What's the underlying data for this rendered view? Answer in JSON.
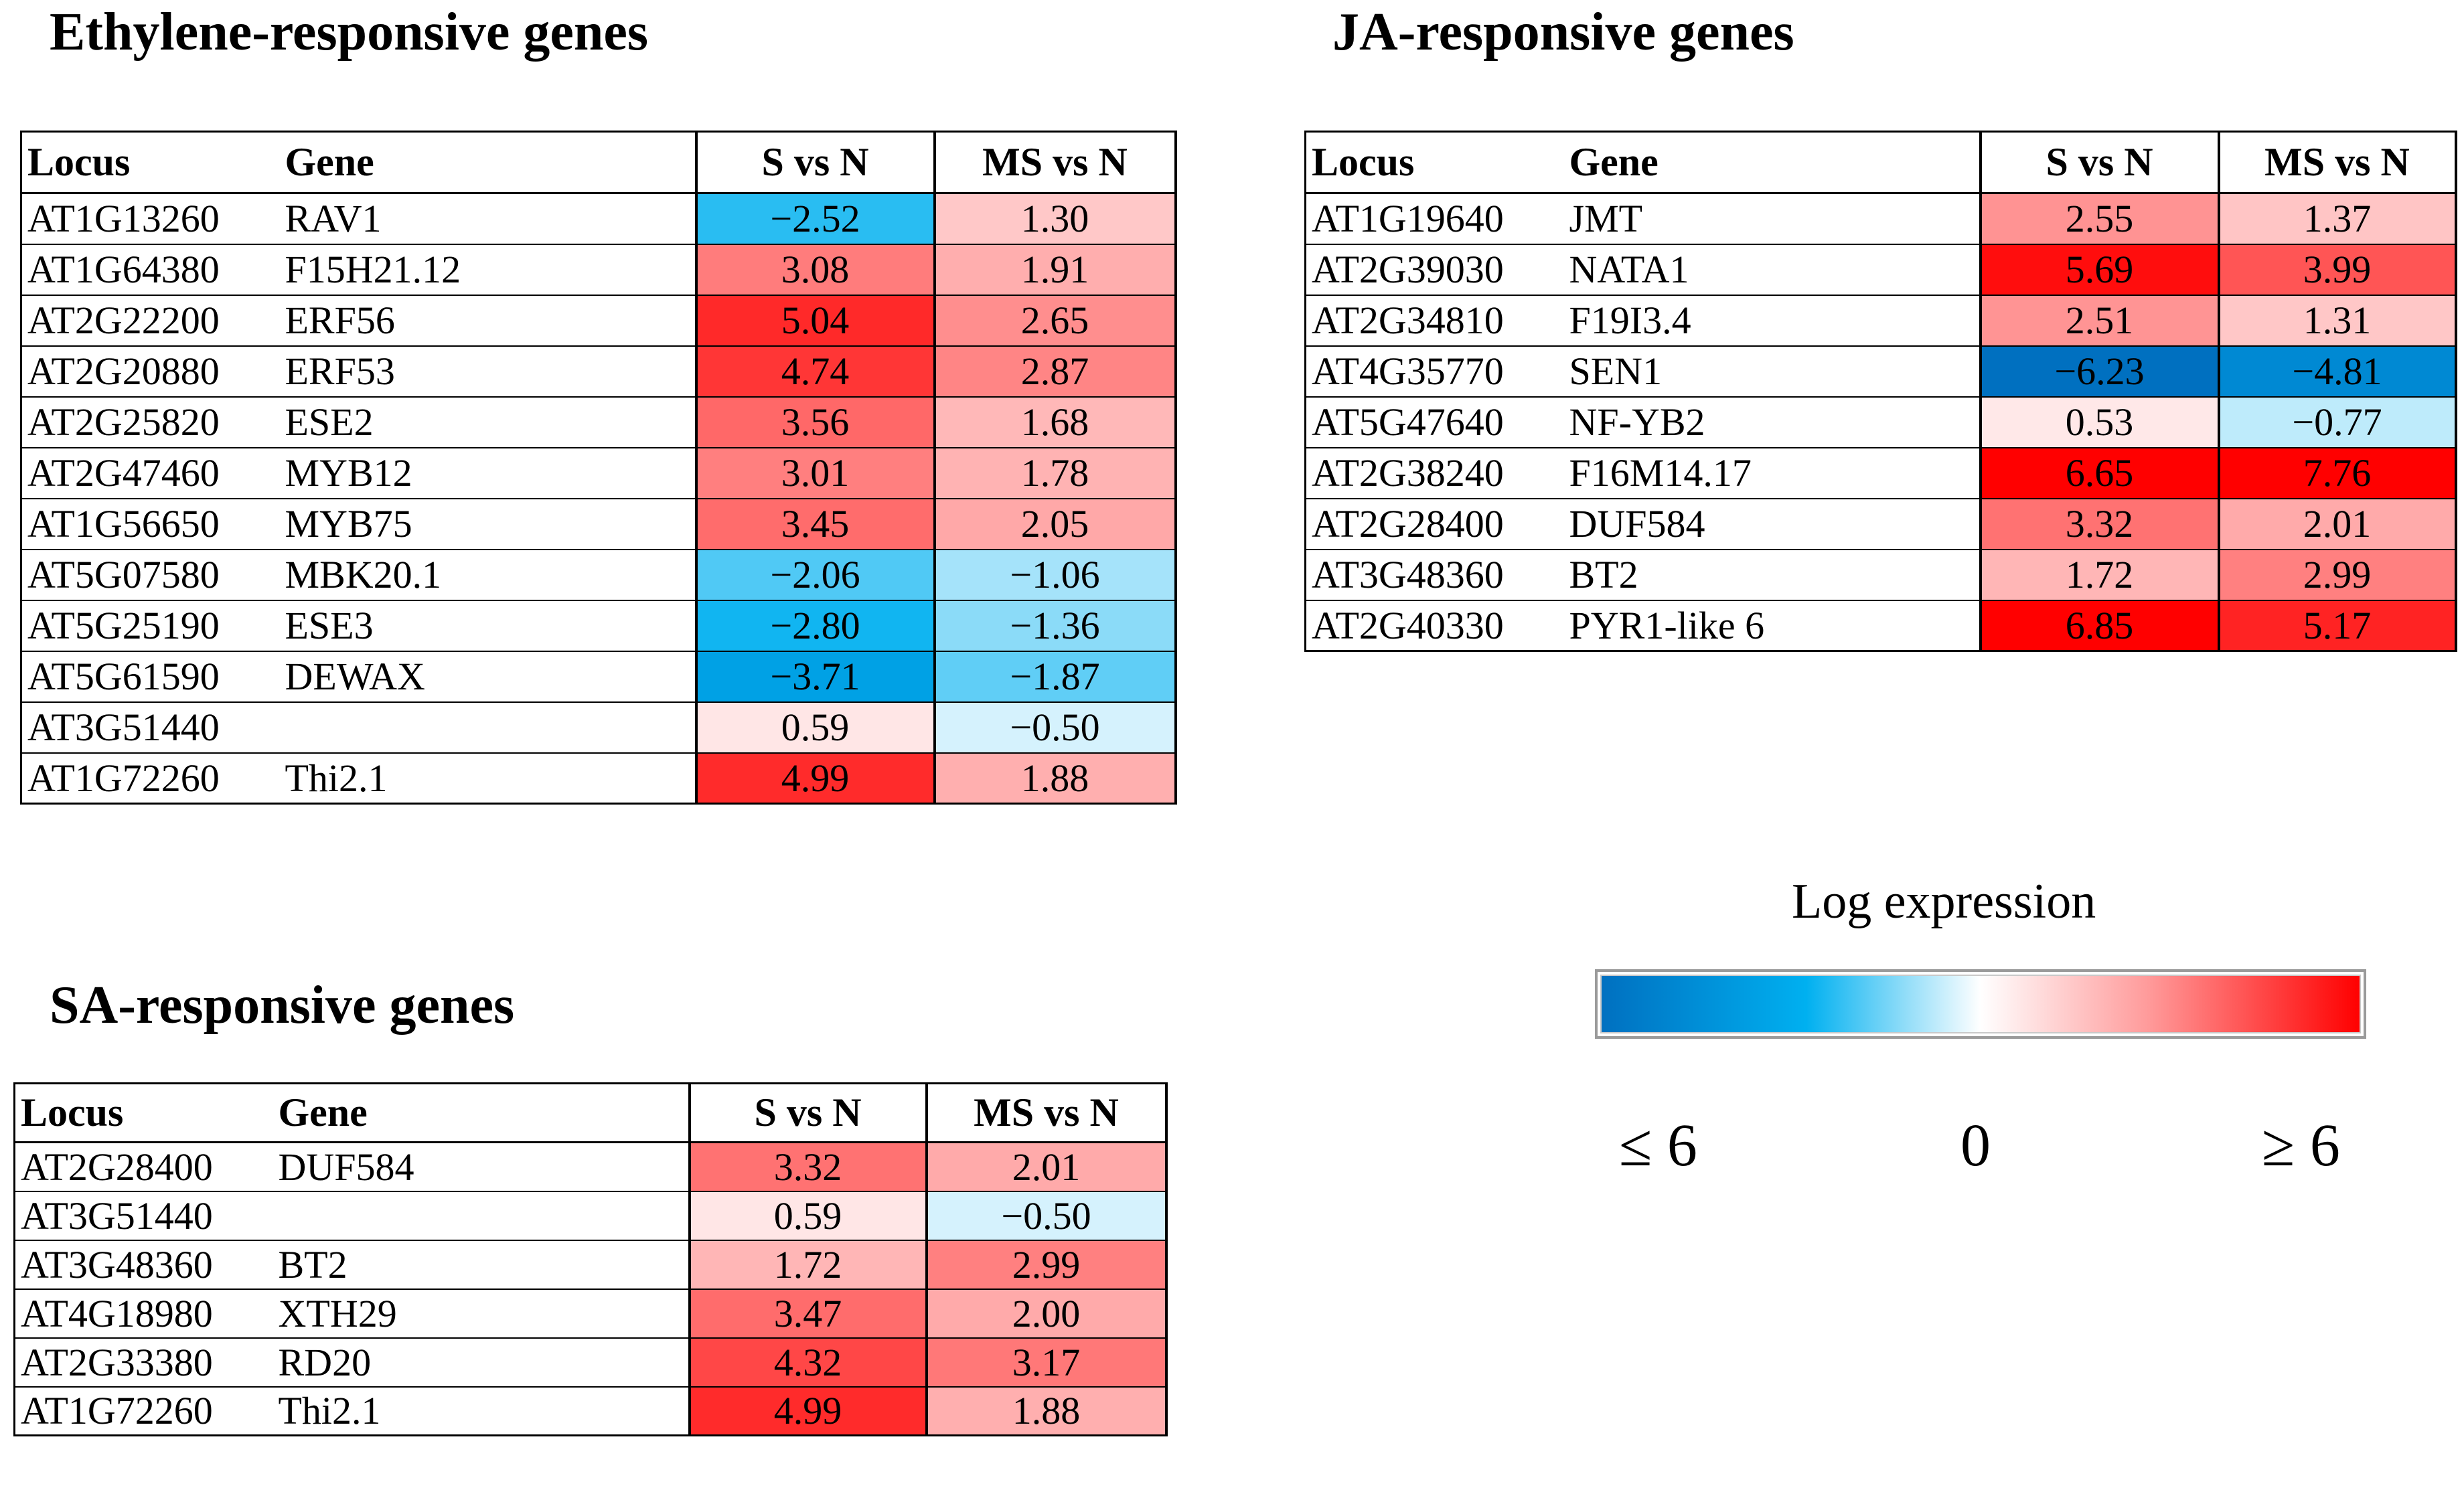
{
  "colors": {
    "negative_max": "#0070c0",
    "negative_mid": "#00b0f0",
    "zero": "#ffffff",
    "positive_max": "#ff0000"
  },
  "chart_data": [
    {
      "type": "table",
      "id": "ethylene",
      "title": "Ethylene-responsive genes",
      "columns": [
        "Locus",
        "Gene",
        "S vs N",
        "MS vs N"
      ],
      "rows": [
        {
          "locus": "AT1G13260",
          "gene": "RAV1",
          "s": "−2.52",
          "ms": "1.30"
        },
        {
          "locus": "AT1G64380",
          "gene": "F15H21.12",
          "s": "3.08",
          "ms": "1.91"
        },
        {
          "locus": "AT2G22200",
          "gene": "ERF56",
          "s": "5.04",
          "ms": "2.65"
        },
        {
          "locus": "AT2G20880",
          "gene": "ERF53",
          "s": "4.74",
          "ms": "2.87"
        },
        {
          "locus": "AT2G25820",
          "gene": "ESE2",
          "s": "3.56",
          "ms": "1.68"
        },
        {
          "locus": "AT2G47460",
          "gene": "MYB12",
          "s": "3.01",
          "ms": "1.78"
        },
        {
          "locus": "AT1G56650",
          "gene": "MYB75",
          "s": "3.45",
          "ms": "2.05"
        },
        {
          "locus": "AT5G07580",
          "gene": "MBK20.1",
          "s": "−2.06",
          "ms": "−1.06"
        },
        {
          "locus": "AT5G25190",
          "gene": "ESE3",
          "s": "−2.80",
          "ms": "−1.36"
        },
        {
          "locus": "AT5G61590",
          "gene": "DEWAX",
          "s": "−3.71",
          "ms": "−1.87"
        },
        {
          "locus": "AT3G51440",
          "gene": "",
          "s": "0.59",
          "ms": "−0.50"
        },
        {
          "locus": "AT1G72260",
          "gene": "Thi2.1",
          "s": "4.99",
          "ms": "1.88"
        }
      ]
    },
    {
      "type": "table",
      "id": "ja",
      "title": "JA-responsive genes",
      "columns": [
        "Locus",
        "Gene",
        "S vs N",
        "MS vs N"
      ],
      "rows": [
        {
          "locus": "AT1G19640",
          "gene": "JMT",
          "s": "2.55",
          "ms": "1.37"
        },
        {
          "locus": "AT2G39030",
          "gene": "NATA1",
          "s": "5.69",
          "ms": "3.99"
        },
        {
          "locus": "AT2G34810",
          "gene": "F19I3.4",
          "s": "2.51",
          "ms": "1.31"
        },
        {
          "locus": "AT4G35770",
          "gene": "SEN1",
          "s": "−6.23",
          "ms": "−4.81"
        },
        {
          "locus": "AT5G47640",
          "gene": "NF-YB2",
          "s": "0.53",
          "ms": "−0.77"
        },
        {
          "locus": "AT2G38240",
          "gene": "F16M14.17",
          "s": "6.65",
          "ms": "7.76"
        },
        {
          "locus": "AT2G28400",
          "gene": "DUF584",
          "s": "3.32",
          "ms": "2.01"
        },
        {
          "locus": "AT3G48360",
          "gene": "BT2",
          "s": "1.72",
          "ms": "2.99"
        },
        {
          "locus": "AT2G40330",
          "gene": "PYR1-like 6",
          "s": "6.85",
          "ms": "5.17"
        }
      ]
    },
    {
      "type": "table",
      "id": "sa",
      "title": "SA-responsive genes",
      "columns": [
        "Locus",
        "Gene",
        "S vs N",
        "MS vs N"
      ],
      "rows": [
        {
          "locus": "AT2G28400",
          "gene": "DUF584",
          "s": "3.32",
          "ms": "2.01"
        },
        {
          "locus": "AT3G51440",
          "gene": "",
          "s": "0.59",
          "ms": "−0.50"
        },
        {
          "locus": "AT3G48360",
          "gene": "BT2",
          "s": "1.72",
          "ms": "2.99"
        },
        {
          "locus": "AT4G18980",
          "gene": "XTH29",
          "s": "3.47",
          "ms": "2.00"
        },
        {
          "locus": "AT2G33380",
          "gene": "RD20",
          "s": "4.32",
          "ms": "3.17"
        },
        {
          "locus": "AT1G72260",
          "gene": "Thi2.1",
          "s": "4.99",
          "ms": "1.88"
        }
      ]
    }
  ],
  "legend": {
    "title": "Log expression",
    "scale_min": -6,
    "scale_max": 6,
    "label_min": "≤ 6",
    "label_mid": "0",
    "label_max": "≥ 6"
  }
}
